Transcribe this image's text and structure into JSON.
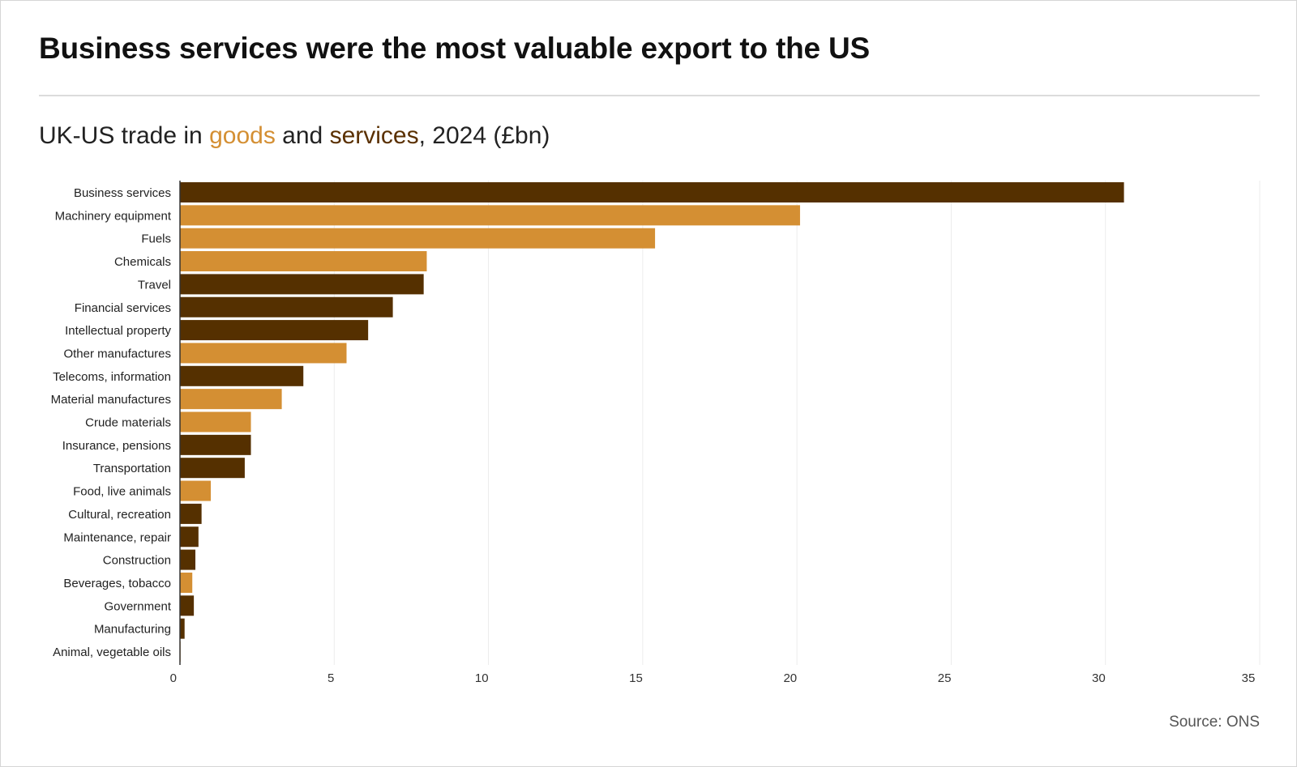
{
  "header": {
    "title": "Business services were the most valuable export to the US",
    "subtitle_pre": "UK-US trade in ",
    "subtitle_goods": "goods",
    "subtitle_mid": " and ",
    "subtitle_services": "services",
    "subtitle_post": ", 2024 (£bn)"
  },
  "footer": {
    "source": "Source: ONS"
  },
  "colors": {
    "goods": "#d48f33",
    "services": "#553000",
    "grid": "#ececec",
    "axis": "#333333"
  },
  "chart_data": {
    "type": "bar",
    "orientation": "horizontal",
    "title": "Business services were the most valuable export to the US",
    "subtitle": "UK-US trade in goods and services, 2024 (£bn)",
    "xlim": [
      0,
      35
    ],
    "xticks": [
      0,
      5,
      10,
      15,
      20,
      25,
      30,
      35
    ],
    "grid": true,
    "categories": [
      "Business services",
      "Machinery equipment",
      "Fuels",
      "Chemicals",
      "Travel",
      "Financial services",
      "Intellectual property",
      "Other manufactures",
      "Telecoms, information",
      "Material manufactures",
      "Crude materials",
      "Insurance, pensions",
      "Transportation",
      "Food, live animals",
      "Cultural, recreation",
      "Maintenance, repair",
      "Construction",
      "Beverages, tobacco",
      "Government",
      "Manufacturing",
      "Animal, vegetable oils"
    ],
    "values": [
      30.6,
      20.1,
      15.4,
      8.0,
      7.9,
      6.9,
      6.1,
      5.4,
      4.0,
      3.3,
      2.3,
      2.3,
      2.1,
      1.0,
      0.7,
      0.6,
      0.5,
      0.4,
      0.45,
      0.15,
      0.02
    ],
    "kind": [
      "services",
      "goods",
      "goods",
      "goods",
      "services",
      "services",
      "services",
      "goods",
      "services",
      "goods",
      "goods",
      "services",
      "services",
      "goods",
      "services",
      "services",
      "services",
      "goods",
      "services",
      "services",
      "goods"
    ]
  }
}
